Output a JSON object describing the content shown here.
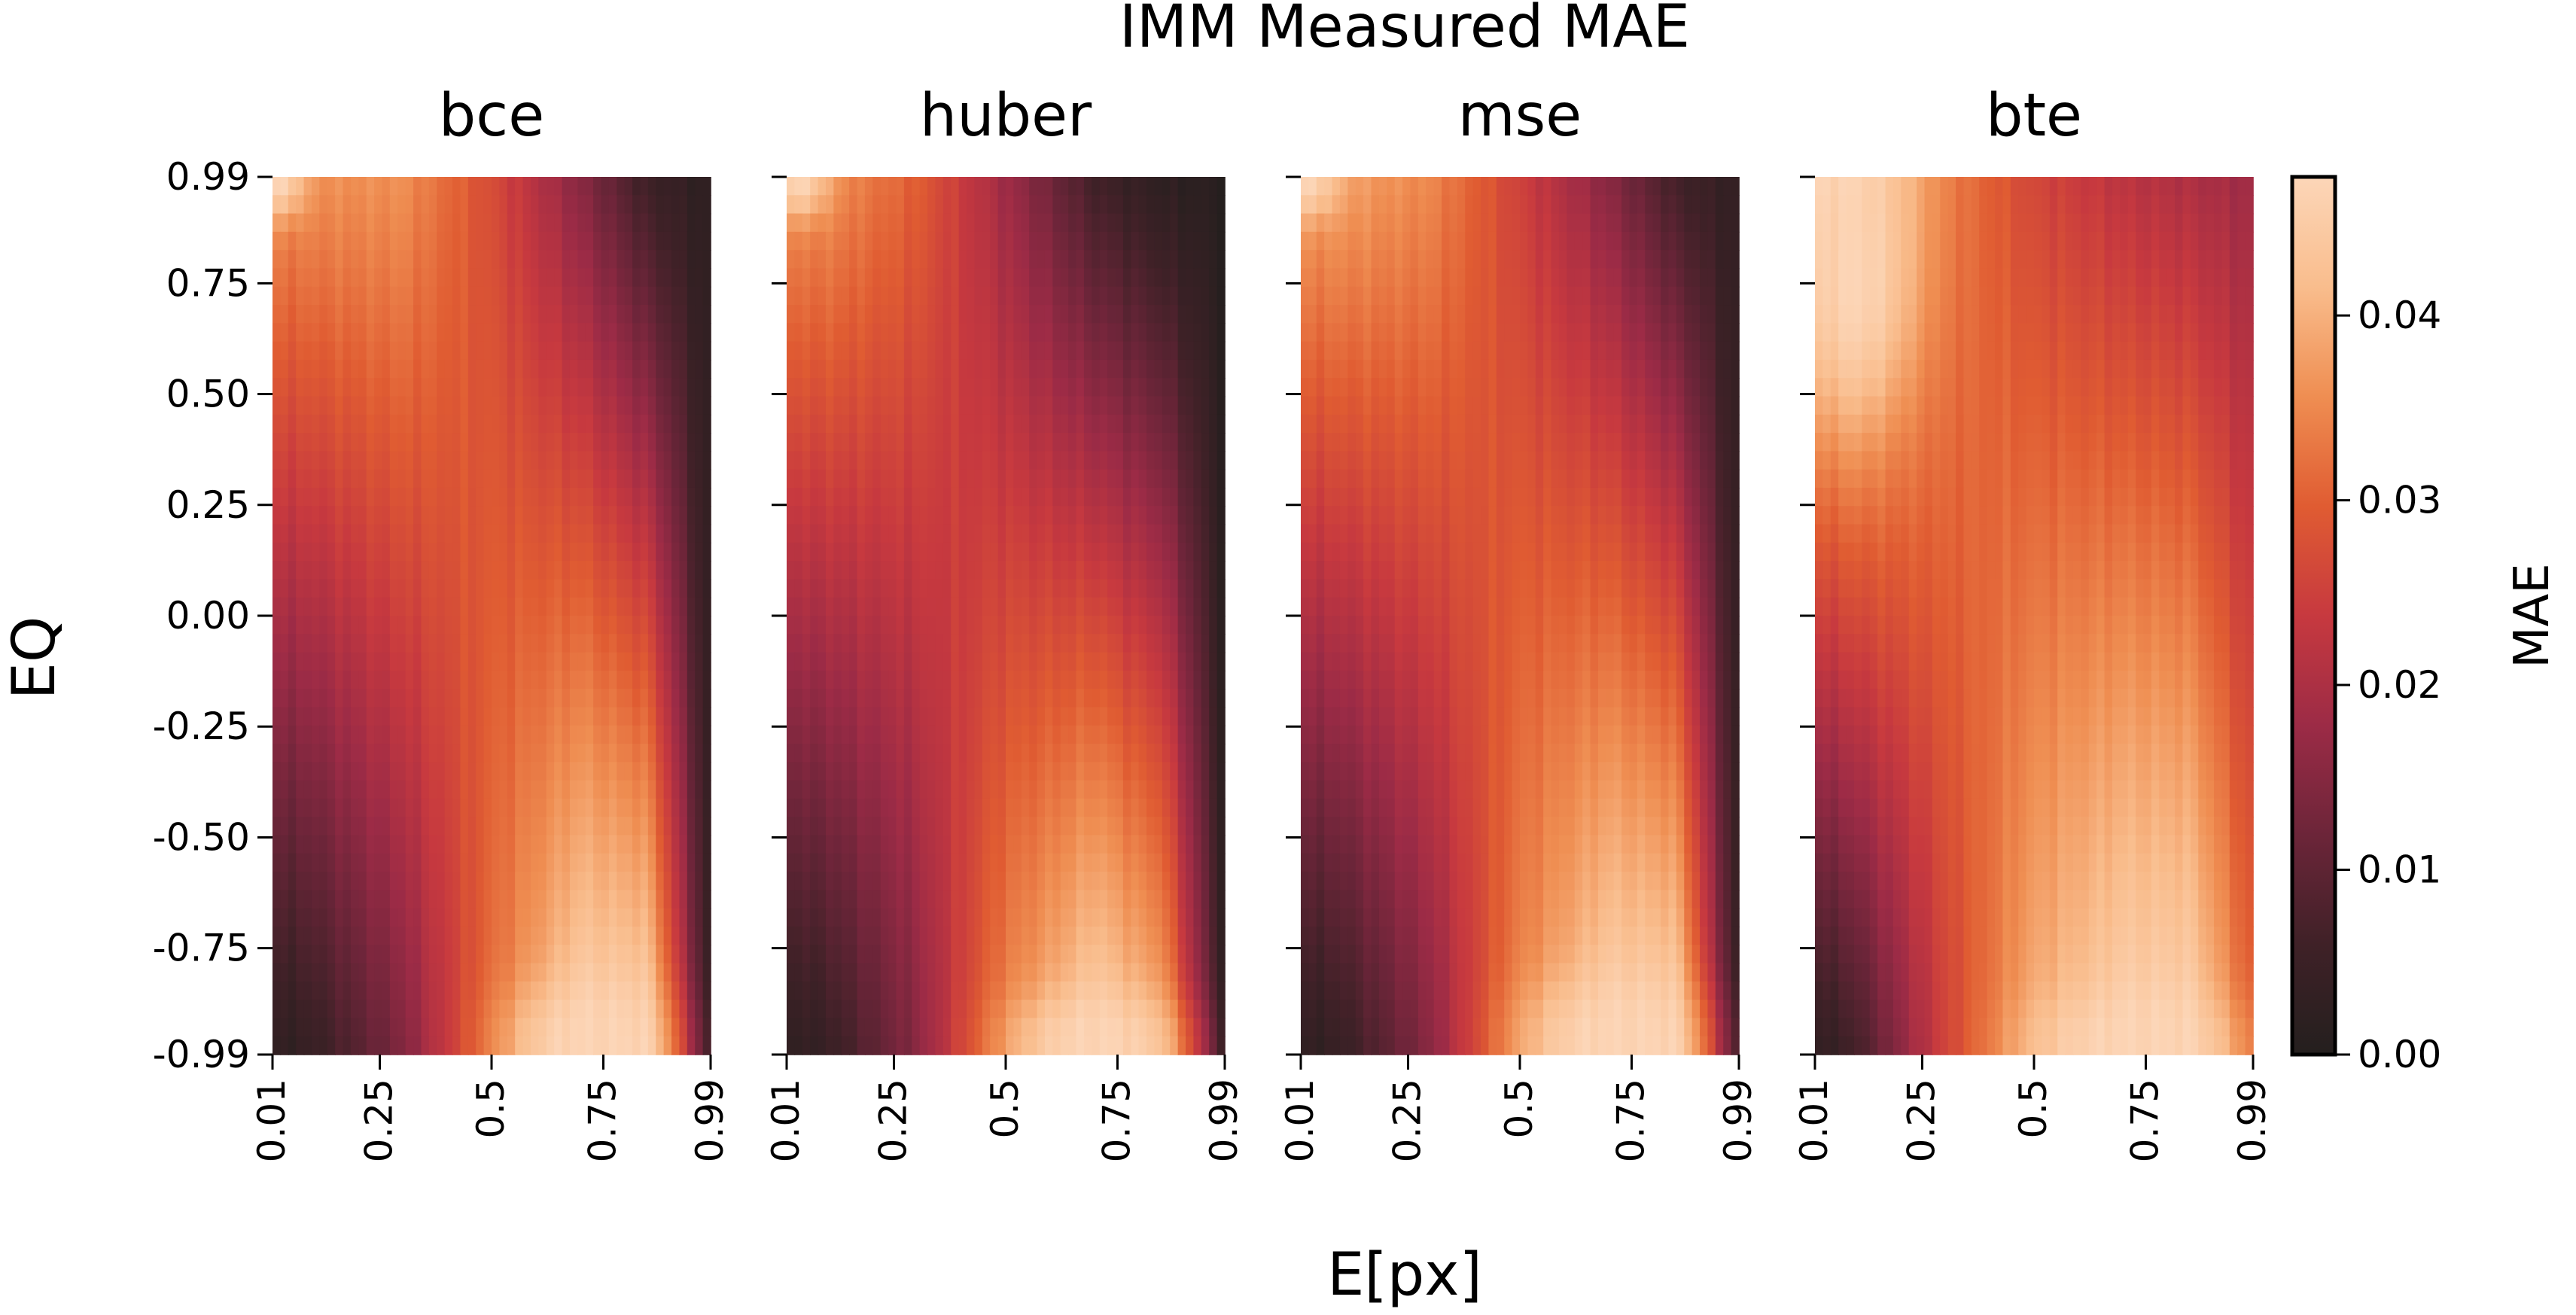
{
  "chart_data": {
    "type": "heatmap",
    "suptitle": "IMM Measured MAE",
    "xlabel": "E[px]",
    "ylabel": "EQ",
    "x_tick_labels": [
      "0.01",
      "0.25",
      "0.5",
      "0.75",
      "0.99"
    ],
    "x_tick_values": [
      0.01,
      0.25,
      0.5,
      0.75,
      0.99
    ],
    "x_range": [
      0.01,
      0.99
    ],
    "y_tick_labels": [
      "0.99",
      "0.75",
      "0.50",
      "0.25",
      "0.00",
      "-0.25",
      "-0.50",
      "-0.75",
      "-0.99"
    ],
    "y_tick_values": [
      0.99,
      0.75,
      0.5,
      0.25,
      0.0,
      -0.25,
      -0.5,
      -0.75,
      -0.99
    ],
    "y_range": [
      -0.99,
      0.99
    ],
    "colorbar": {
      "label": "MAE",
      "range": [
        0.0,
        0.0475
      ],
      "ticks": [
        0.0,
        0.01,
        0.02,
        0.03,
        0.04
      ],
      "tick_labels": [
        "0.00",
        "0.01",
        "0.02",
        "0.03",
        "0.04"
      ],
      "colors": [
        "#241f1e",
        "#3f2127",
        "#6c2539",
        "#9c2b46",
        "#c7393f",
        "#e05c32",
        "#ef8e52",
        "#f9bd8d",
        "#fcd6b8"
      ]
    },
    "panels": [
      {
        "name": "bce",
        "profile_x": [
          0.01,
          0.1,
          0.3,
          0.5,
          0.7,
          0.85,
          0.99
        ],
        "profile_top": [
          0.036,
          0.036,
          0.036,
          0.027,
          0.015,
          0.005,
          0.002
        ],
        "profile_bottom": [
          0.002,
          0.004,
          0.014,
          0.032,
          0.047,
          0.047,
          0.002
        ],
        "hot_spots": [
          {
            "x": 0.03,
            "y": 0.98,
            "value": 0.047,
            "spread_x": 0.05,
            "spread_y": 0.08
          },
          {
            "x": 0.71,
            "y": -0.96,
            "value": 0.047,
            "spread_x": 0.16,
            "spread_y": 0.12
          }
        ]
      },
      {
        "name": "huber",
        "profile_x": [
          0.01,
          0.1,
          0.3,
          0.5,
          0.7,
          0.85,
          0.99
        ],
        "profile_top": [
          0.036,
          0.036,
          0.03,
          0.018,
          0.006,
          0.002,
          0.001
        ],
        "profile_bottom": [
          0.002,
          0.004,
          0.015,
          0.035,
          0.047,
          0.04,
          0.002
        ],
        "hot_spots": [
          {
            "x": 0.04,
            "y": 0.98,
            "value": 0.047,
            "spread_x": 0.06,
            "spread_y": 0.08
          },
          {
            "x": 0.7,
            "y": -0.96,
            "value": 0.047,
            "spread_x": 0.17,
            "spread_y": 0.1
          }
        ]
      },
      {
        "name": "mse",
        "profile_x": [
          0.01,
          0.1,
          0.3,
          0.5,
          0.7,
          0.85,
          0.99
        ],
        "profile_top": [
          0.038,
          0.038,
          0.035,
          0.025,
          0.015,
          0.006,
          0.003
        ],
        "profile_bottom": [
          0.002,
          0.004,
          0.015,
          0.035,
          0.047,
          0.047,
          0.002
        ],
        "hot_spots": [
          {
            "x": 0.03,
            "y": 0.98,
            "value": 0.047,
            "spread_x": 0.06,
            "spread_y": 0.08
          },
          {
            "x": 0.7,
            "y": -0.96,
            "value": 0.047,
            "spread_x": 0.18,
            "spread_y": 0.13
          }
        ]
      },
      {
        "name": "bte",
        "profile_x": [
          0.01,
          0.1,
          0.3,
          0.5,
          0.7,
          0.85,
          0.99
        ],
        "profile_top": [
          0.047,
          0.047,
          0.034,
          0.026,
          0.022,
          0.02,
          0.018
        ],
        "profile_bottom": [
          0.002,
          0.006,
          0.025,
          0.04,
          0.047,
          0.047,
          0.03
        ],
        "hot_spots": [
          {
            "x": 0.1,
            "y": 0.75,
            "value": 0.047,
            "spread_x": 0.12,
            "spread_y": 0.3
          },
          {
            "x": 0.72,
            "y": -0.96,
            "value": 0.047,
            "spread_x": 0.2,
            "spread_y": 0.1
          }
        ]
      }
    ]
  }
}
